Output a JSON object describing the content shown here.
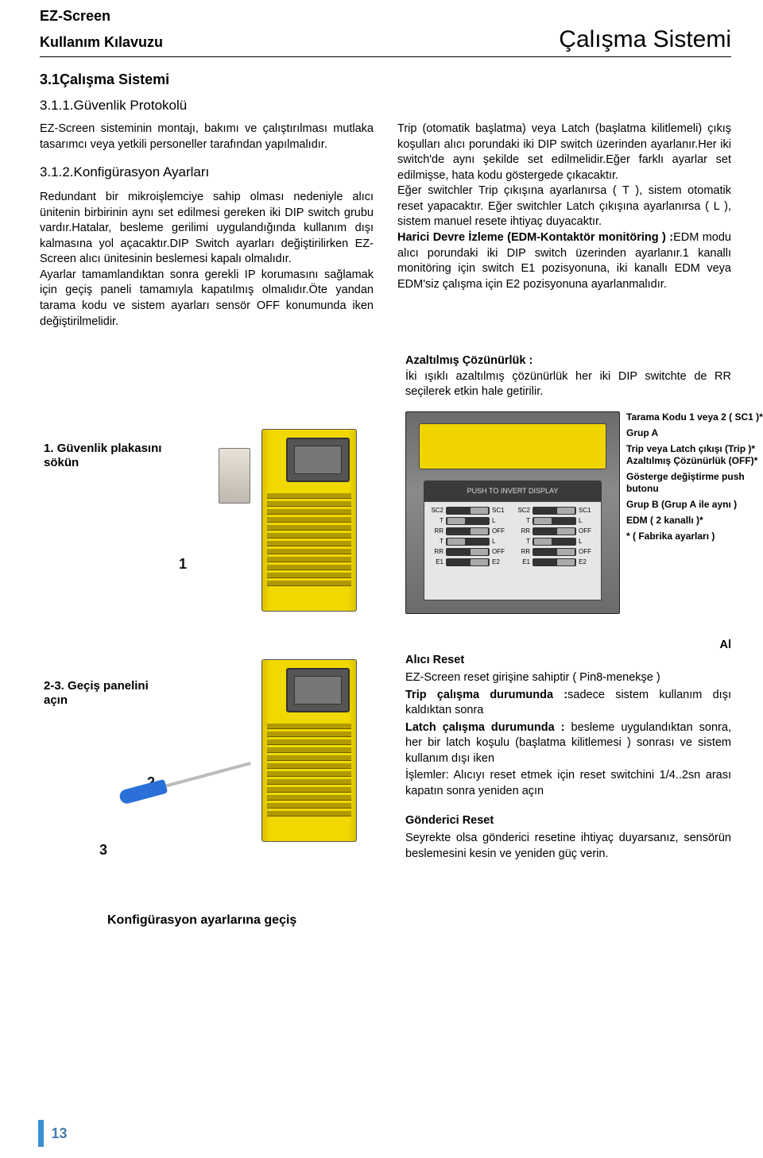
{
  "header": {
    "line1": "EZ-Screen",
    "line2": "Kullanım Kılavuzu",
    "right": "Çalışma Sistemi"
  },
  "h31": "3.1Çalışma Sistemi",
  "h311": "3.1.1.Güvenlik Protokolü",
  "leftCol": {
    "p1": "EZ-Screen sisteminin montajı, bakımı ve çalıştırılması mutlaka tasarımcı veya yetkili personeller tarafından yapılmalıdır.",
    "h312": "3.1.2.Konfigürasyon Ayarları",
    "p2": "Redundant bir mikroişlemciye sahip olması nedeniyle alıcı ünitenin birbirinin aynı set edilmesi gereken iki DIP switch grubu vardır.Hatalar, besleme gerilimi uygulandığında kullanım dışı kalmasına yol açacaktır.DIP Switch ayarları değiştirilirken EZ-Screen alıcı ünitesinin beslemesi kapalı olmalıdır.",
    "p3": "Ayarlar tamamlandıktan sonra gerekli IP korumasını sağlamak için geçiş paneli tamamıyla kapatılmış olmalıdır.Öte yandan tarama kodu ve sistem ayarları sensör OFF konumunda iken değiştirilmelidir."
  },
  "rightCol": {
    "p1": "Trip (otomatik başlatma) veya Latch (başlatma kilitlemeli) çıkış koşulları alıcı porundaki iki DIP switch üzerinden ayarlanır.Her iki switch'de aynı şekilde set edilmelidir.Eğer farklı ayarlar set edilmişse, hata kodu göstergede çıkacaktır.",
    "p2": "Eğer switchler Trip çıkışına ayarlanırsa ( T ), sistem otomatik reset yapacaktır. Eğer switchler Latch çıkışına ayarlanırsa ( L ), sistem manuel resete ihtiyaç duyacaktır.",
    "p3a": "Harici Devre İzleme (EDM-Kontaktör monitöring ) :",
    "p3b": "EDM modu alıcı porundaki iki DIP switch üzerinden ayarlanır.1 kanallı monitöring için switch E1 pozisyonuna, iki kanallı EDM veya EDM'siz çalışma için E2 pozisyonuna ayarlanmalıdır."
  },
  "azalt": {
    "title": "Azaltılmış Çözünürlük :",
    "body": "İki ışıklı azaltılmış çözünürlük her iki DIP switchte de RR seçilerek etkin hale getirilir."
  },
  "illust": {
    "step1_num": "1.",
    "step1": "Güvenlik plakasını sökün",
    "step23_num": "2-3.",
    "step23": "Geçiş panelini açın",
    "bottom": "Konfigürasyon ayarlarına geçiş",
    "n1": "1",
    "n2": "2",
    "n3": "3"
  },
  "dip": {
    "push": "PUSH TO INVERT DISPLAY",
    "colA": "SC2",
    "colB": "SC1",
    "rows": [
      {
        "l": "SC2",
        "r": "SC1"
      },
      {
        "l": "T",
        "r": "L"
      },
      {
        "l": "RR",
        "r": "OFF"
      },
      {
        "l": "T",
        "r": "L"
      },
      {
        "l": "RR",
        "r": "OFF"
      },
      {
        "l": "E1",
        "r": "E2"
      }
    ],
    "annots": [
      "Tarama Kodu 1 veya 2 ( SC1 )*",
      "Grup A",
      "Trip veya Latch çıkışı (Trip )*  Azaltılmış Çözünürlük (OFF)*",
      "Gösterge değiştirme push butonu",
      "Grup B (Grup A ile aynı )",
      "EDM  ( 2 kanallı )*",
      "* ( Fabrika ayarları )"
    ]
  },
  "reset": {
    "al": "Al",
    "h1": "Alıcı Reset",
    "p1": "EZ-Screen reset girişine sahiptir ( Pin8-menekşe )",
    "p2a": "Trip çalışma durumunda :",
    "p2b": "sadece sistem kullanım dışı kaldıktan sonra",
    "p3a": "Latch çalışma durumunda :",
    "p3b": " besleme uygulandıktan sonra, her bir latch koşulu (başlatma kilitlemesi ) sonrası ve sistem kullanım dışı iken",
    "p4": "İşlemler: Alıcıyı reset etmek için reset switchini 1/4..2sn arası kapatın sonra yeniden açın",
    "h2": "Gönderici Reset",
    "p5": "Seyrekte olsa gönderici resetine ihtiyaç duyarsanız, sensörün beslemesini kesin ve yeniden güç verin."
  },
  "pagenum": "13",
  "colors": {
    "accent": "#3a8fd6",
    "yellow": "#f0d800",
    "handle": "#2a70d8"
  }
}
